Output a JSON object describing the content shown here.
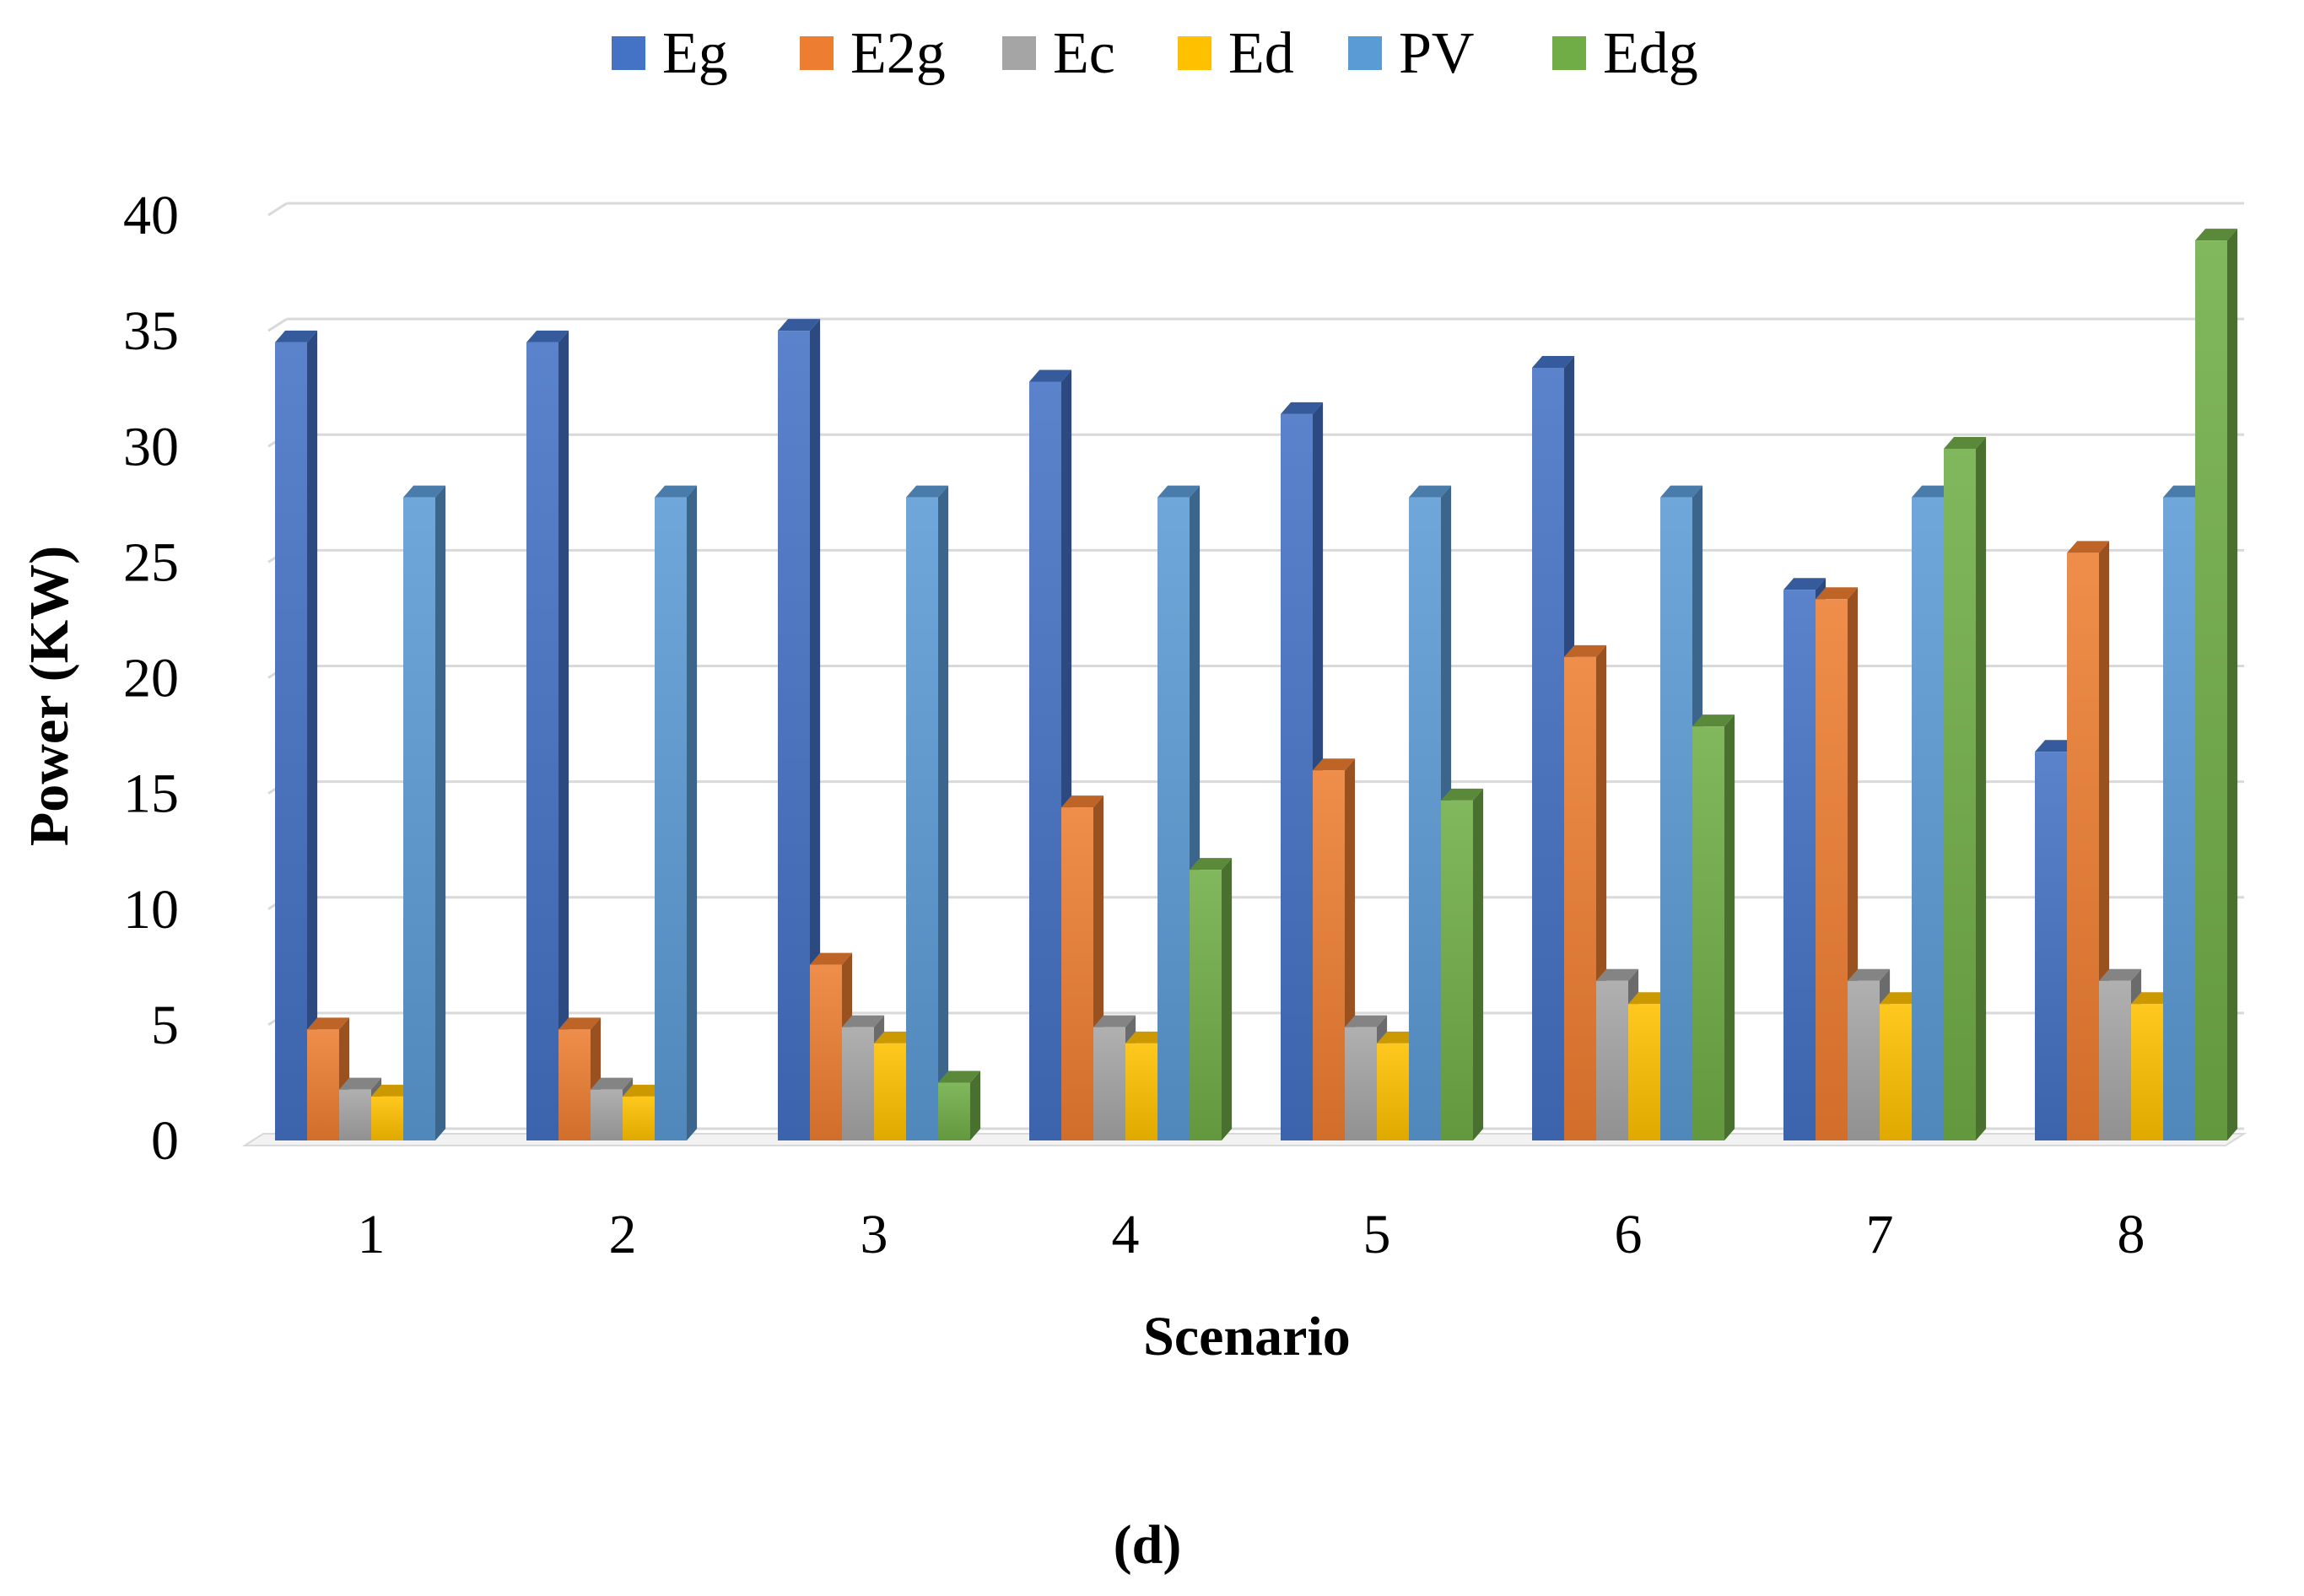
{
  "chart_data": {
    "type": "bar",
    "title": "",
    "xlabel": "Scenario",
    "ylabel": "Power (KW)",
    "caption": "(d)",
    "ylim": [
      0,
      40
    ],
    "yticks": [
      0,
      5,
      10,
      15,
      20,
      25,
      30,
      35,
      40
    ],
    "yticks_text": [
      "0",
      "5",
      "10",
      "15",
      "20",
      "25",
      "30",
      "35",
      "40"
    ],
    "categories": [
      "1",
      "2",
      "3",
      "4",
      "5",
      "6",
      "7",
      "8"
    ],
    "grid": true,
    "legend_position": "top",
    "series": [
      {
        "name": "Eg",
        "color": "#4472C4",
        "values": [
          34.5,
          34.5,
          35,
          32.8,
          31.4,
          33.4,
          23.8,
          16.8
        ]
      },
      {
        "name": "E2g",
        "color": "#ED7D31",
        "values": [
          4.8,
          4.8,
          7.6,
          14.4,
          16,
          20.9,
          23.4,
          25.4
        ]
      },
      {
        "name": "Ec",
        "color": "#A5A5A5",
        "values": [
          2.2,
          2.2,
          4.9,
          4.9,
          4.9,
          6.9,
          6.9,
          6.9
        ]
      },
      {
        "name": "Ed",
        "color": "#FFC000",
        "values": [
          1.9,
          1.9,
          4.2,
          4.2,
          4.2,
          5.9,
          5.9,
          5.9
        ]
      },
      {
        "name": "PV",
        "color": "#5B9BD5",
        "values": [
          27.8,
          27.8,
          27.8,
          27.8,
          27.8,
          27.8,
          27.8,
          27.8
        ]
      },
      {
        "name": "Edg",
        "color": "#70AD47",
        "values": [
          0,
          0,
          2.5,
          11.7,
          14.7,
          17.9,
          29.9,
          38.9
        ]
      }
    ]
  }
}
